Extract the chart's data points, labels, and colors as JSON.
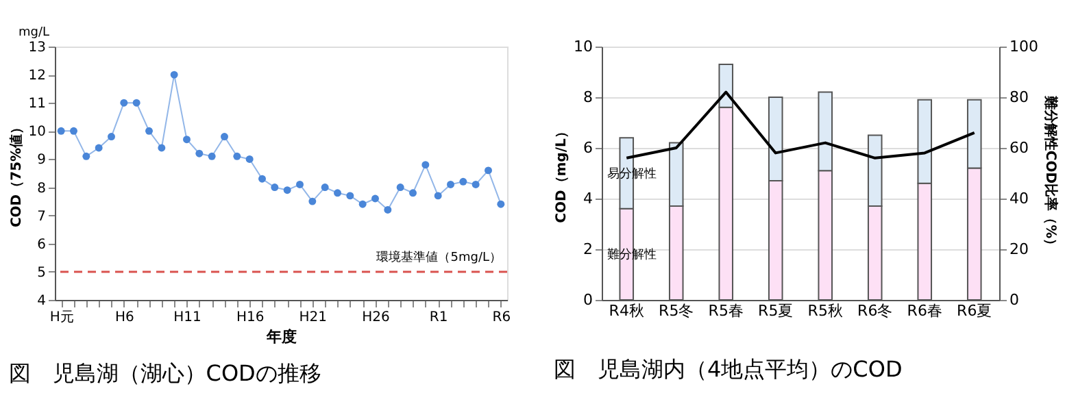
{
  "chart_data": [
    {
      "type": "line",
      "title": "図　児島湖（湖心）CODの推移",
      "xlabel": "年度",
      "ylabel": "COD（75%値）",
      "annotations": [
        "mg/L"
      ],
      "categories": [
        "H元",
        null,
        null,
        null,
        null,
        "H6",
        null,
        null,
        null,
        null,
        "H11",
        null,
        null,
        null,
        null,
        "H16",
        null,
        null,
        null,
        null,
        "H21",
        null,
        null,
        null,
        null,
        "H26",
        null,
        null,
        null,
        null,
        "R1",
        null,
        null,
        null,
        null,
        "R6"
      ],
      "series": [
        {
          "color": "#4a86d8",
          "values": [
            10,
            10,
            9.1,
            9.4,
            9.8,
            11,
            11,
            10,
            9.4,
            12,
            9.7,
            9.2,
            9.1,
            9.8,
            9.1,
            9.0,
            8.3,
            8.0,
            7.9,
            8.1,
            7.5,
            8.0,
            7.8,
            7.7,
            7.4,
            7.6,
            7.2,
            8.0,
            7.8,
            8.8,
            7.7,
            8.1,
            8.2,
            8.1,
            8.6,
            7.4
          ]
        }
      ],
      "ylim": [
        4,
        13
      ],
      "yticks": [
        4,
        5,
        6,
        7,
        8,
        9,
        10,
        11,
        12,
        13
      ],
      "ref_lines": [
        {
          "axis": "y",
          "value": 5,
          "label": "環境基準値（5mg/L）",
          "color": "#d9534f",
          "line_style": "dashed"
        }
      ],
      "marker": "circle",
      "grid": false
    },
    {
      "type": "bar",
      "title": "図　児島湖内（4地点平均）のCOD",
      "ylabel": "COD（mg/L）",
      "y2label": "難分解性COD比率（%）",
      "categories": [
        "R4秋",
        "R5冬",
        "R5春",
        "R5夏",
        "R5秋",
        "R6冬",
        "R6春",
        "R6夏"
      ],
      "stacked": true,
      "series": [
        {
          "name": "難分解性",
          "color": "#fde0f5",
          "values": [
            3.6,
            3.7,
            7.6,
            4.7,
            5.1,
            3.7,
            4.6,
            5.2
          ]
        },
        {
          "name": "易分解性",
          "color": "#ddeaf6",
          "values": [
            2.8,
            2.5,
            1.7,
            3.3,
            3.1,
            2.8,
            3.3,
            2.7
          ]
        },
        {
          "type": "line",
          "axis": "y2",
          "color": "#000000",
          "values": [
            56,
            60,
            82,
            58,
            62,
            56,
            58,
            66
          ]
        }
      ],
      "ylim": [
        0,
        10
      ],
      "yticks": [
        0,
        2,
        4,
        6,
        8,
        10
      ],
      "y2lim": [
        0,
        100
      ],
      "y2ticks": [
        0,
        20,
        40,
        60,
        80,
        100
      ],
      "grid": "y"
    }
  ]
}
